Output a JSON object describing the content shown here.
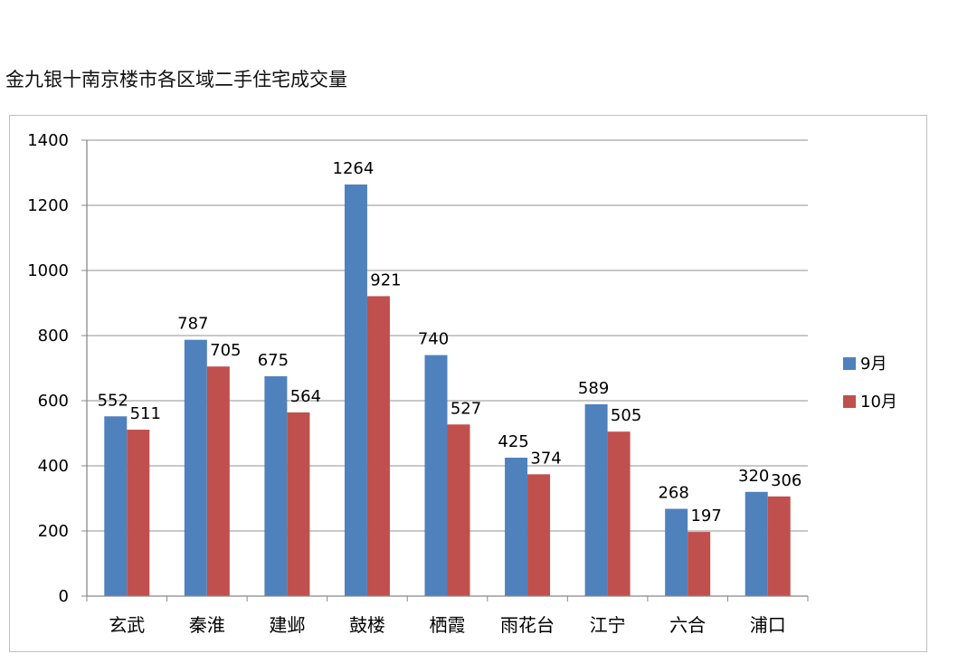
{
  "title": "金九银十南京楼市各区域二手住宅成交量",
  "chart_data": {
    "type": "bar",
    "title": "金九银十南京楼市各区域二手住宅成交量",
    "categories": [
      "玄武",
      "秦淮",
      "建邺",
      "鼓楼",
      "栖霞",
      "雨花台",
      "江宁",
      "六合",
      "浦口"
    ],
    "series": [
      {
        "name": "9月",
        "color": "#4f81bd",
        "values": [
          552,
          787,
          675,
          1264,
          740,
          425,
          589,
          268,
          320
        ]
      },
      {
        "name": "10月",
        "color": "#c0504d",
        "values": [
          511,
          705,
          564,
          921,
          527,
          374,
          505,
          197,
          306
        ]
      }
    ],
    "ylim": [
      0,
      1400
    ],
    "yticks": [
      0,
      200,
      400,
      600,
      800,
      1000,
      1200,
      1400
    ],
    "grid": true,
    "legend": "right",
    "data_labels": true
  }
}
